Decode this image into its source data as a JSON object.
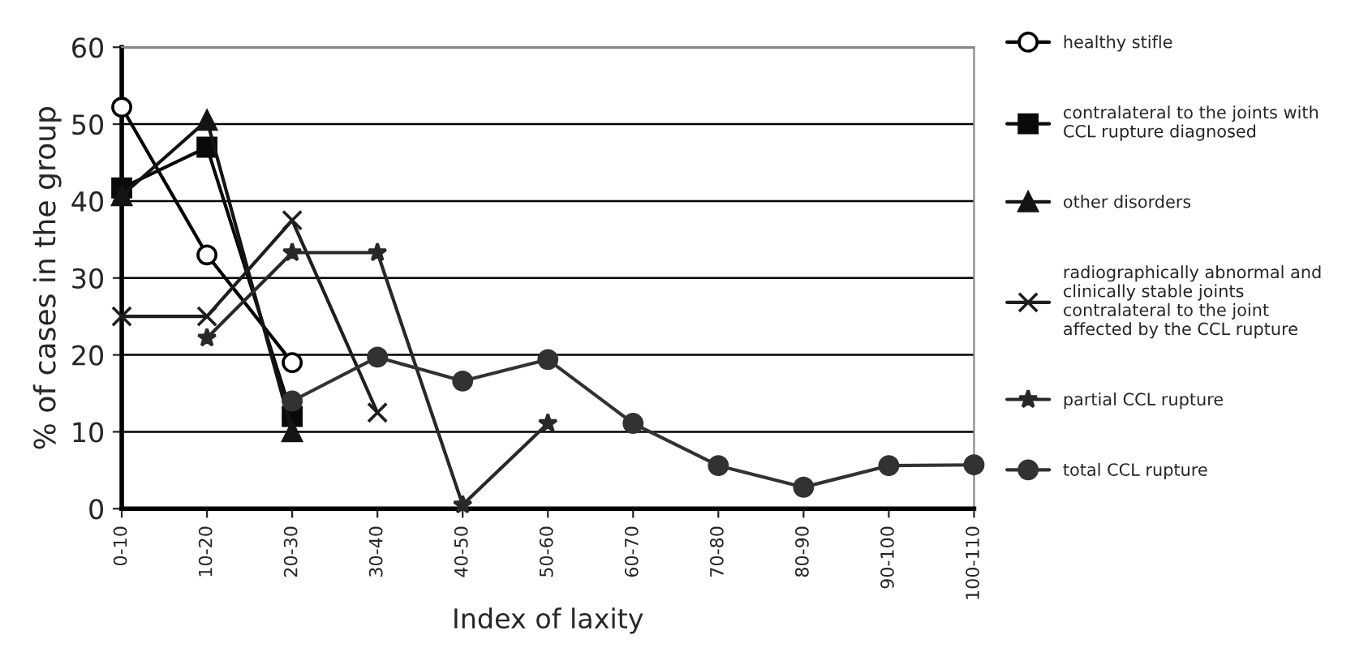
{
  "chart_data": {
    "type": "line",
    "xlabel": "Index of laxity",
    "ylabel": "% of cases in the group",
    "categories": [
      "0-10",
      "10-20",
      "20-30",
      "30-40",
      "40-50",
      "50-60",
      "60-70",
      "70-80",
      "80-90",
      "90-100",
      "100-110"
    ],
    "ylim": [
      0,
      60
    ],
    "yticks": [
      0,
      10,
      20,
      30,
      40,
      50,
      60
    ],
    "grid": "y",
    "legend": "right",
    "series": [
      {
        "name": "healthy stifle",
        "color": "#000000",
        "marker": "circle",
        "values": [
          52.2,
          33,
          19,
          null,
          null,
          null,
          null,
          null,
          null,
          null,
          null
        ]
      },
      {
        "name": "contralateral to the joints with\nCCL rupture diagnosed",
        "color": "#0a0a0a",
        "marker": "square",
        "values": [
          41.7,
          47,
          12,
          null,
          null,
          null,
          null,
          null,
          null,
          null,
          null
        ]
      },
      {
        "name": "other disorders",
        "color": "#141414",
        "marker": "triangle",
        "values": [
          40.7,
          50.5,
          10,
          null,
          null,
          null,
          null,
          null,
          null,
          null,
          null
        ]
      },
      {
        "name": "radiographically abnormal and\nclinically stable joints\ncontralateral to the joint\naffected by the CCL rupture",
        "color": "#1e1e1e",
        "marker": "cross",
        "values": [
          25,
          25,
          37.5,
          12.5,
          null,
          null,
          null,
          null,
          null,
          null,
          null
        ]
      },
      {
        "name": "partial CCL rupture",
        "color": "#282828",
        "marker": "star",
        "values": [
          null,
          22.2,
          33.3,
          33.3,
          0.5,
          11.1,
          null,
          null,
          null,
          null,
          null
        ]
      },
      {
        "name": "total CCL rupture",
        "color": "#323232",
        "marker": "circle",
        "values": [
          null,
          null,
          14,
          19.7,
          16.6,
          19.4,
          11.1,
          5.6,
          2.8,
          5.6,
          5.7
        ]
      }
    ]
  }
}
